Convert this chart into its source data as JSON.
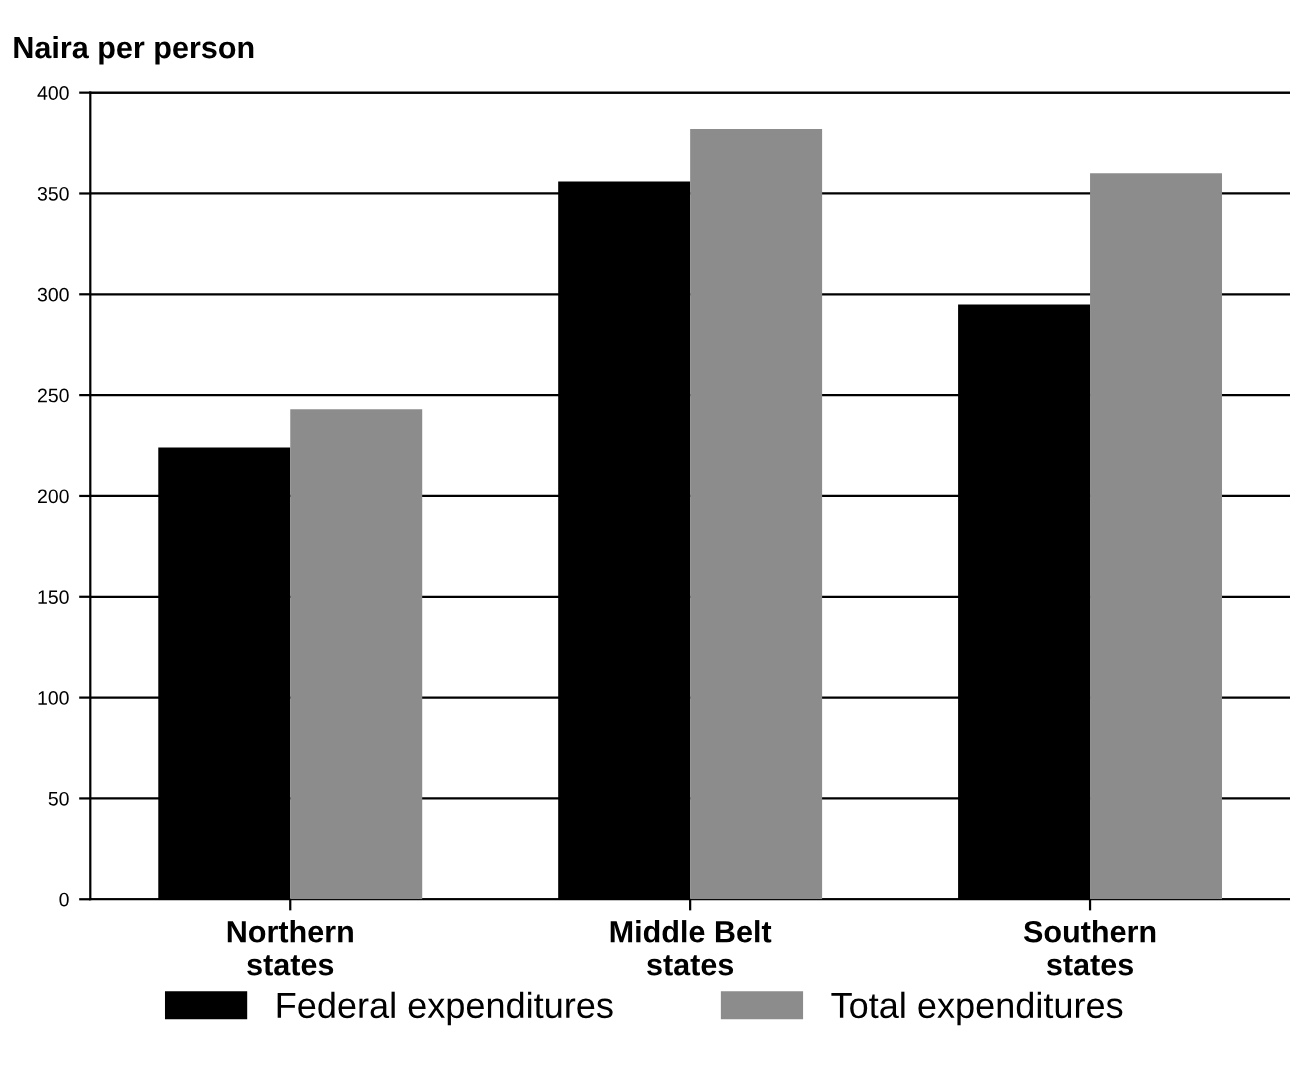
{
  "chart_data": {
    "type": "bar",
    "ylabel": "Naira per person",
    "categories": [
      "Northern\nstates",
      "Middle Belt\nstates",
      "Southern\nstates"
    ],
    "series": [
      {
        "name": "Federal expenditures",
        "color": "#000000",
        "values": [
          224,
          356,
          295
        ]
      },
      {
        "name": "Total expenditures",
        "color": "#8c8c8c",
        "values": [
          243,
          382,
          360
        ]
      }
    ],
    "ylim": [
      0,
      400
    ],
    "yticks": [
      0,
      50,
      100,
      150,
      200,
      250,
      300,
      350,
      400
    ],
    "grid": "y",
    "legend": "bottom"
  }
}
